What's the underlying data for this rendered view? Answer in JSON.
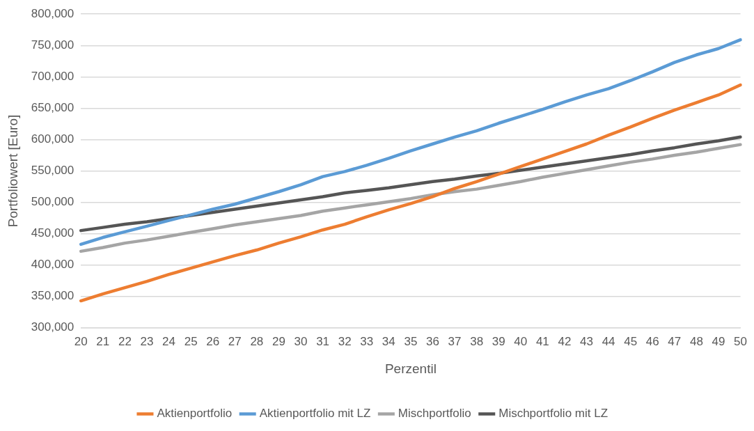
{
  "chart_data": {
    "type": "line",
    "xlabel": "Perzentil",
    "ylabel": "Portfoliowert [Euro]",
    "categories": [
      "20",
      "21",
      "22",
      "23",
      "24",
      "25",
      "26",
      "27",
      "28",
      "29",
      "30",
      "31",
      "32",
      "33",
      "34",
      "35",
      "36",
      "37",
      "38",
      "39",
      "40",
      "41",
      "42",
      "43",
      "44",
      "45",
      "46",
      "47",
      "48",
      "49",
      "50"
    ],
    "series": [
      {
        "name": "Aktienportfolio",
        "color": "#ed7d31",
        "values": [
          343000,
          354000,
          364000,
          374000,
          385000,
          395000,
          405000,
          415000,
          424000,
          435000,
          445000,
          456000,
          465000,
          477000,
          488000,
          498000,
          509000,
          522000,
          533000,
          545000,
          557000,
          569000,
          581000,
          593000,
          607000,
          620000,
          634000,
          647000,
          659000,
          671000,
          687000
        ]
      },
      {
        "name": "Aktienportfolio mit LZ",
        "color": "#5b9bd5",
        "values": [
          433000,
          444000,
          453000,
          462000,
          471000,
          480000,
          489000,
          497000,
          507000,
          517000,
          528000,
          541000,
          549000,
          559000,
          570000,
          582000,
          593000,
          604000,
          614000,
          626000,
          637000,
          648000,
          660000,
          671000,
          681000,
          694000,
          708000,
          723000,
          735000,
          745000,
          759000
        ]
      },
      {
        "name": "Mischportfolio",
        "color": "#a5a5a5",
        "values": [
          422000,
          428000,
          435000,
          440000,
          446000,
          452000,
          458000,
          464000,
          469000,
          474000,
          479000,
          486000,
          491000,
          496000,
          501000,
          506000,
          512000,
          517000,
          521000,
          527000,
          533000,
          540000,
          546000,
          552000,
          558000,
          564000,
          569000,
          575000,
          580000,
          586000,
          592000
        ]
      },
      {
        "name": "Mischportfolio mit LZ",
        "color": "#555555",
        "values": [
          455000,
          460000,
          465000,
          469000,
          474000,
          479000,
          484000,
          489000,
          494000,
          499000,
          504000,
          509000,
          515000,
          519000,
          523000,
          528000,
          533000,
          537000,
          542000,
          546000,
          551000,
          556000,
          561000,
          566000,
          571000,
          576000,
          582000,
          587000,
          593000,
          598000,
          604000
        ]
      }
    ],
    "ylim": [
      300000,
      800000
    ],
    "yticks": [
      {
        "value": 300000,
        "label": "300,000"
      },
      {
        "value": 350000,
        "label": "350,000"
      },
      {
        "value": 400000,
        "label": "400,000"
      },
      {
        "value": 450000,
        "label": "450,000"
      },
      {
        "value": 500000,
        "label": "500,000"
      },
      {
        "value": 550000,
        "label": "550,000"
      },
      {
        "value": 600000,
        "label": "600,000"
      },
      {
        "value": 650000,
        "label": "650,000"
      },
      {
        "value": 700000,
        "label": "700,000"
      },
      {
        "value": 750000,
        "label": "750,000"
      },
      {
        "value": 800000,
        "label": "800,000"
      }
    ],
    "grid": "y",
    "legend": "bottom",
    "marker": "none",
    "line_style": "solid"
  }
}
